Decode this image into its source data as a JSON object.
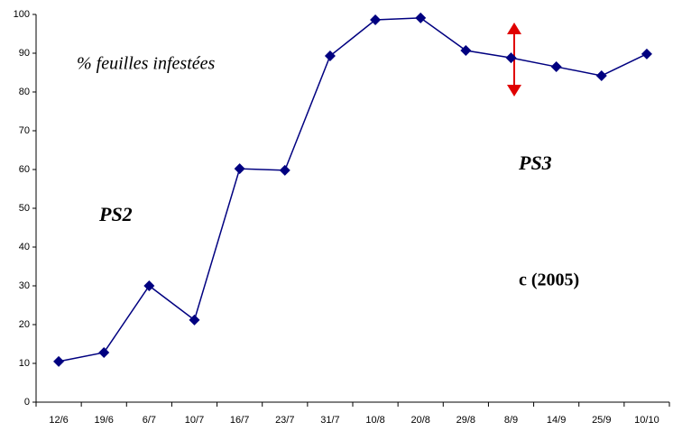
{
  "chart_data": {
    "type": "line",
    "categories": [
      "12/6",
      "19/6",
      "6/7",
      "10/7",
      "16/7",
      "23/7",
      "31/7",
      "10/8",
      "20/8",
      "29/8",
      "8/9",
      "14/9",
      "25/9",
      "10/10"
    ],
    "series": [
      {
        "name": null,
        "color": "#000080",
        "values": [
          10.5,
          12.8,
          30,
          21.2,
          60.2,
          59.8,
          89.3,
          98.6,
          99.1,
          90.7,
          88.8,
          86.5,
          84.2,
          89.8
        ]
      }
    ],
    "ylim": [
      0,
      100
    ],
    "yticks": [
      0,
      10,
      20,
      30,
      40,
      50,
      60,
      70,
      80,
      90,
      100
    ],
    "grid": false,
    "annotations": [
      "% feuilles infestées",
      "PS2",
      "PS3",
      "c (2005)"
    ]
  }
}
